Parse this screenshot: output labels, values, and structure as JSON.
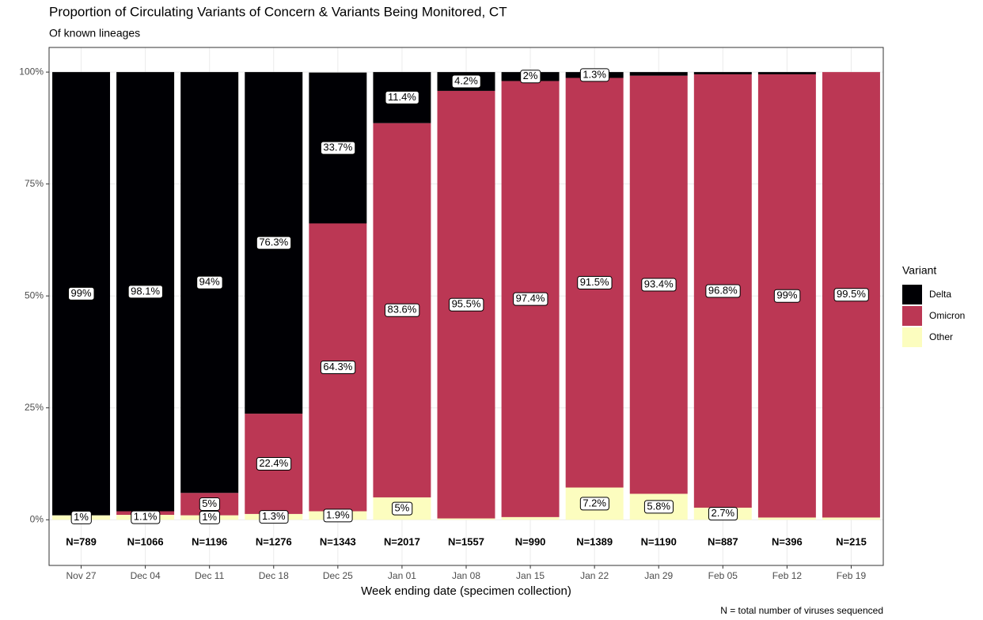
{
  "chart_data": {
    "type": "stacked-bar",
    "title": "Proportion of Circulating Variants of Concern & Variants Being Monitored, CT",
    "subtitle": "Of known lineages",
    "x_label": "Week ending date (specimen collection)",
    "legend_title": "Variant",
    "legend": "right",
    "footnote": "N = total number of viruses sequenced",
    "categories": [
      "Nov 27",
      "Dec 04",
      "Dec 11",
      "Dec 18",
      "Dec 25",
      "Jan 01",
      "Jan 08",
      "Jan 15",
      "Jan 22",
      "Jan 29",
      "Feb 05",
      "Feb 12",
      "Feb 19"
    ],
    "n_labels": [
      "N=789",
      "N=1066",
      "N=1196",
      "N=1276",
      "N=1343",
      "N=2017",
      "N=1557",
      "N=990",
      "N=1389",
      "N=1190",
      "N=887",
      "N=396",
      "N=215"
    ],
    "series": [
      {
        "name": "Delta",
        "color": "#000004",
        "values": [
          99,
          98.1,
          94,
          76.3,
          33.7,
          11.4,
          4.2,
          2,
          1.3,
          0.8,
          0.5,
          0.5,
          0
        ],
        "value_labels": [
          "99%",
          "98.1%",
          "94%",
          "76.3%",
          "33.7%",
          "11.4%",
          "4.2%",
          "2%",
          "1.3%",
          null,
          null,
          null,
          null
        ]
      },
      {
        "name": "Omicron",
        "color": "#BB3754",
        "values": [
          0,
          0.8,
          5,
          22.4,
          64.3,
          83.6,
          95.5,
          97.4,
          91.5,
          93.4,
          96.8,
          99,
          99.5
        ],
        "value_labels": [
          null,
          null,
          "5%",
          "22.4%",
          "64.3%",
          "83.6%",
          "95.5%",
          "97.4%",
          "91.5%",
          "93.4%",
          "96.8%",
          "99%",
          "99.5%"
        ]
      },
      {
        "name": "Other",
        "color": "#FCFDBF",
        "values": [
          1,
          1.1,
          1,
          1.3,
          1.9,
          5,
          0.3,
          0.6,
          7.2,
          5.8,
          2.7,
          0.5,
          0.5
        ],
        "value_labels": [
          "1%",
          "1.1%",
          "1%",
          "1.3%",
          "1.9%",
          "5%",
          null,
          null,
          "7.2%",
          "5.8%",
          "2.7%",
          null,
          null
        ]
      }
    ],
    "ylim": [
      -10.2,
      105.5
    ],
    "yticks": [
      {
        "value": 0,
        "label": "0%"
      },
      {
        "value": 25,
        "label": "25%"
      },
      {
        "value": 50,
        "label": "50%"
      },
      {
        "value": 75,
        "label": "75%"
      },
      {
        "value": 100,
        "label": "100%"
      }
    ],
    "grid": true
  }
}
